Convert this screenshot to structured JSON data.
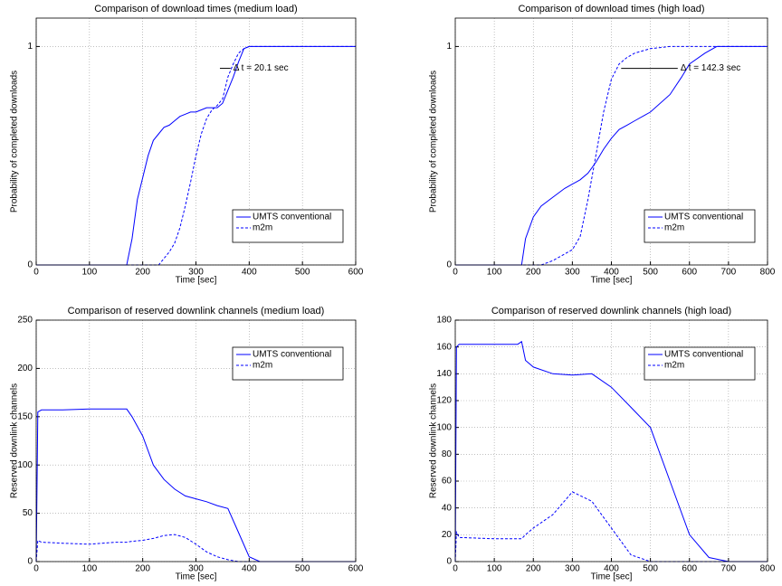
{
  "chart_data": [
    {
      "type": "line",
      "title": "Comparison of download times (medium load)",
      "xlabel": "Time [sec]",
      "ylabel": "Probability of completed downloads",
      "x": [
        0,
        100,
        150,
        170,
        180,
        190,
        200,
        210,
        220,
        230,
        240,
        250,
        260,
        270,
        280,
        290,
        300,
        310,
        320,
        330,
        340,
        350,
        360,
        370,
        380,
        390,
        400,
        500,
        600
      ],
      "series": [
        {
          "name": "UMTS conventional",
          "color": "#0000ff",
          "linestyle": "solid",
          "values": [
            0,
            0,
            0,
            0,
            0.12,
            0.3,
            0.4,
            0.5,
            0.57,
            0.6,
            0.63,
            0.64,
            0.66,
            0.68,
            0.69,
            0.7,
            0.7,
            0.71,
            0.72,
            0.72,
            0.72,
            0.74,
            0.8,
            0.86,
            0.93,
            0.99,
            1,
            1,
            1
          ]
        },
        {
          "name": "m2m",
          "color": "#0000ff",
          "linestyle": "dashed",
          "values": [
            0,
            0,
            0,
            0,
            0,
            0,
            0,
            0,
            0,
            0,
            0.03,
            0.06,
            0.1,
            0.17,
            0.27,
            0.38,
            0.5,
            0.6,
            0.67,
            0.71,
            0.73,
            0.76,
            0.86,
            0.92,
            0.97,
            0.99,
            1,
            1,
            1
          ]
        }
      ],
      "xlim": [
        0,
        600
      ],
      "xticks": [
        0,
        100,
        200,
        300,
        400,
        500,
        600
      ],
      "ylim": [
        0,
        1.13
      ],
      "yticks": [
        0,
        1
      ],
      "grid": true,
      "legend": "lower right",
      "annotation": {
        "text": "Δ t = 20.1 sec",
        "x": [
          345,
          365
        ],
        "y": 0.9
      }
    },
    {
      "type": "line",
      "title": "Comparison of download times (high load)",
      "xlabel": "Time [sec]",
      "ylabel": "Probability of completed downloads",
      "x": [
        0,
        100,
        170,
        180,
        200,
        220,
        250,
        280,
        300,
        320,
        340,
        360,
        380,
        400,
        420,
        440,
        460,
        500,
        550,
        580,
        600,
        640,
        670,
        700,
        800
      ],
      "series": [
        {
          "name": "UMTS conventional",
          "color": "#0000ff",
          "linestyle": "solid",
          "values": [
            0,
            0,
            0,
            0.12,
            0.22,
            0.27,
            0.31,
            0.35,
            0.37,
            0.39,
            0.42,
            0.47,
            0.53,
            0.58,
            0.62,
            0.64,
            0.66,
            0.7,
            0.78,
            0.86,
            0.92,
            0.97,
            1,
            1,
            1
          ]
        },
        {
          "name": "m2m",
          "color": "#0000ff",
          "linestyle": "dashed",
          "values": [
            0,
            0,
            0,
            0,
            0,
            0,
            0.02,
            0.05,
            0.07,
            0.13,
            0.3,
            0.5,
            0.7,
            0.85,
            0.92,
            0.95,
            0.97,
            0.99,
            1,
            1,
            1,
            1,
            1,
            1,
            1
          ]
        }
      ],
      "xlim": [
        0,
        800
      ],
      "xticks": [
        0,
        100,
        200,
        300,
        400,
        500,
        600,
        700,
        800
      ],
      "ylim": [
        0,
        1.13
      ],
      "yticks": [
        0,
        1
      ],
      "grid": true,
      "legend": "lower right",
      "annotation": {
        "text": "Δ t = 142.3 sec",
        "x": [
          425,
          570
        ],
        "y": 0.9
      }
    },
    {
      "type": "line",
      "title": "Comparison of reserved downlink channels (medium load)",
      "xlabel": "Time [sec]",
      "ylabel": "Reserved downlink channels",
      "x": [
        0,
        3,
        10,
        50,
        100,
        150,
        170,
        180,
        200,
        220,
        240,
        260,
        280,
        300,
        320,
        340,
        360,
        380,
        400,
        420,
        600
      ],
      "series": [
        {
          "name": "UMTS conventional",
          "color": "#0000ff",
          "linestyle": "solid",
          "values": [
            0,
            155,
            157,
            157,
            158,
            158,
            158,
            150,
            130,
            100,
            85,
            75,
            68,
            65,
            62,
            58,
            55,
            30,
            5,
            0,
            0
          ]
        },
        {
          "name": "m2m",
          "color": "#0000ff",
          "linestyle": "dashed",
          "values": [
            0,
            22,
            20,
            19,
            18,
            20,
            20,
            21,
            22,
            24,
            27,
            28,
            25,
            18,
            10,
            5,
            2,
            0,
            0,
            0,
            0
          ]
        }
      ],
      "xlim": [
        0,
        600
      ],
      "xticks": [
        0,
        100,
        200,
        300,
        400,
        500,
        600
      ],
      "ylim": [
        0,
        250
      ],
      "yticks": [
        0,
        50,
        100,
        150,
        200,
        250
      ],
      "grid": true,
      "legend": "upper right"
    },
    {
      "type": "line",
      "title": "Comparison of reserved downlink channels (high load)",
      "xlabel": "Time [sec]",
      "ylabel": "Reserved downlink channels",
      "x": [
        0,
        3,
        10,
        100,
        160,
        170,
        180,
        200,
        250,
        300,
        350,
        400,
        450,
        500,
        550,
        600,
        650,
        700,
        800
      ],
      "series": [
        {
          "name": "UMTS conventional",
          "color": "#0000ff",
          "linestyle": "solid",
          "values": [
            0,
            160,
            162,
            162,
            162,
            164,
            150,
            145,
            140,
            139,
            140,
            130,
            115,
            100,
            60,
            20,
            3,
            0,
            0
          ]
        },
        {
          "name": "m2m",
          "color": "#0000ff",
          "linestyle": "dashed",
          "values": [
            0,
            22,
            18,
            17,
            17,
            17,
            20,
            25,
            35,
            52,
            45,
            25,
            5,
            0,
            0,
            0,
            0,
            0,
            0
          ]
        }
      ],
      "xlim": [
        0,
        800
      ],
      "xticks": [
        0,
        100,
        200,
        300,
        400,
        500,
        600,
        700,
        800
      ],
      "ylim": [
        0,
        180
      ],
      "yticks": [
        0,
        20,
        40,
        60,
        80,
        100,
        120,
        140,
        160,
        180
      ],
      "grid": true,
      "legend": "upper right"
    }
  ]
}
